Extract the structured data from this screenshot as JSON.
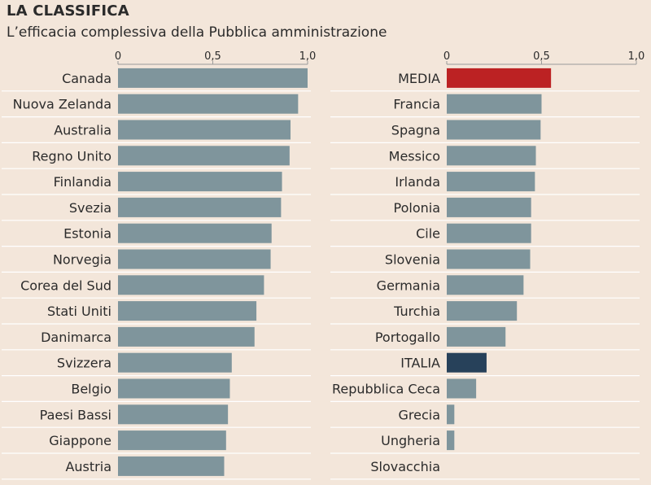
{
  "header": {
    "title": "LA CLASSIFICA",
    "subtitle": "L’efficacia complessiva della Pubblica amministrazione"
  },
  "colors": {
    "background": "#f3e6da",
    "bar": "#7f959c",
    "highlight_media": "#bc2223",
    "highlight_italia": "#27415a",
    "gridline": "#ffffff",
    "axis": "#9a9a9a"
  },
  "chart_data": [
    {
      "type": "bar",
      "orientation": "horizontal",
      "title": "L’efficacia complessiva della Pubblica amministrazione",
      "xlim": [
        0,
        1.0
      ],
      "xticks": [
        0,
        0.5,
        1.0
      ],
      "xtick_labels": [
        "0",
        "0,5",
        "1,0"
      ],
      "categories": [
        "Canada",
        "Nuova Zelanda",
        "Australia",
        "Regno Unito",
        "Finlandia",
        "Svezia",
        "Estonia",
        "Norvegia",
        "Corea del Sud",
        "Stati Uniti",
        "Danimarca",
        "Svizzera",
        "Belgio",
        "Paesi Bassi",
        "Giappone",
        "Austria"
      ],
      "values": [
        1.0,
        0.95,
        0.91,
        0.905,
        0.865,
        0.86,
        0.81,
        0.805,
        0.77,
        0.73,
        0.72,
        0.6,
        0.59,
        0.58,
        0.57,
        0.56
      ],
      "highlight": {}
    },
    {
      "type": "bar",
      "orientation": "horizontal",
      "xlim": [
        0,
        1.0
      ],
      "xticks": [
        0,
        0.5,
        1.0
      ],
      "xtick_labels": [
        "0",
        "0,5",
        "1,0"
      ],
      "categories": [
        "MEDIA",
        "Francia",
        "Spagna",
        "Messico",
        "Irlanda",
        "Polonia",
        "Cile",
        "Slovenia",
        "Germania",
        "Turchia",
        "Portogallo",
        "ITALIA",
        "Repubblica Ceca",
        "Grecia",
        "Ungheria",
        "Slovacchia"
      ],
      "values": [
        0.55,
        0.5,
        0.495,
        0.47,
        0.465,
        0.445,
        0.445,
        0.44,
        0.405,
        0.37,
        0.31,
        0.21,
        0.155,
        0.04,
        0.04,
        0.0
      ],
      "highlight": {
        "MEDIA": "highlight_media",
        "ITALIA": "highlight_italia"
      }
    }
  ]
}
